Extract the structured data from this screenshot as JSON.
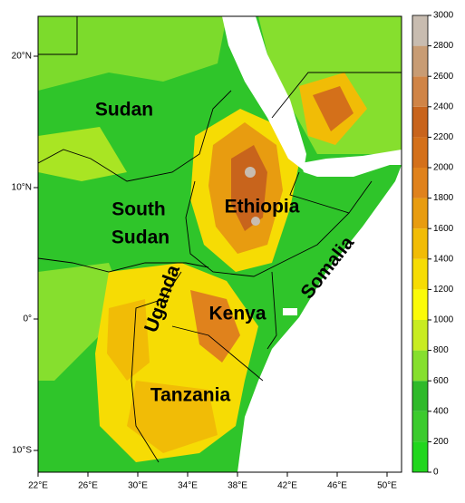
{
  "map": {
    "countries": [
      "Sudan",
      "South",
      "Sudan",
      "Ethiopia",
      "Uganda",
      "Kenya",
      "Somalia",
      "Tanzania"
    ],
    "lon_labels": [
      "22°E",
      "26°E",
      "30°E",
      "34°E",
      "38°E",
      "42°E",
      "46°E",
      "50°E"
    ],
    "lat_labels": [
      "20°N",
      "10°N",
      "0°",
      "10°S"
    ],
    "colorbar": {
      "ticks": [
        0,
        200,
        400,
        600,
        800,
        1000,
        1200,
        1400,
        1600,
        1800,
        2000,
        2200,
        2400,
        2600,
        2800,
        3000
      ],
      "colors": [
        "#22d61e",
        "#3ccb2e",
        "#2fba2a",
        "#86df2e",
        "#c8ec22",
        "#fbfb08",
        "#f6dc04",
        "#f1bc06",
        "#e89c10",
        "#e0821c",
        "#d4701a",
        "#c8641c",
        "#d08446",
        "#c89c74",
        "#c8bcb0"
      ]
    }
  }
}
